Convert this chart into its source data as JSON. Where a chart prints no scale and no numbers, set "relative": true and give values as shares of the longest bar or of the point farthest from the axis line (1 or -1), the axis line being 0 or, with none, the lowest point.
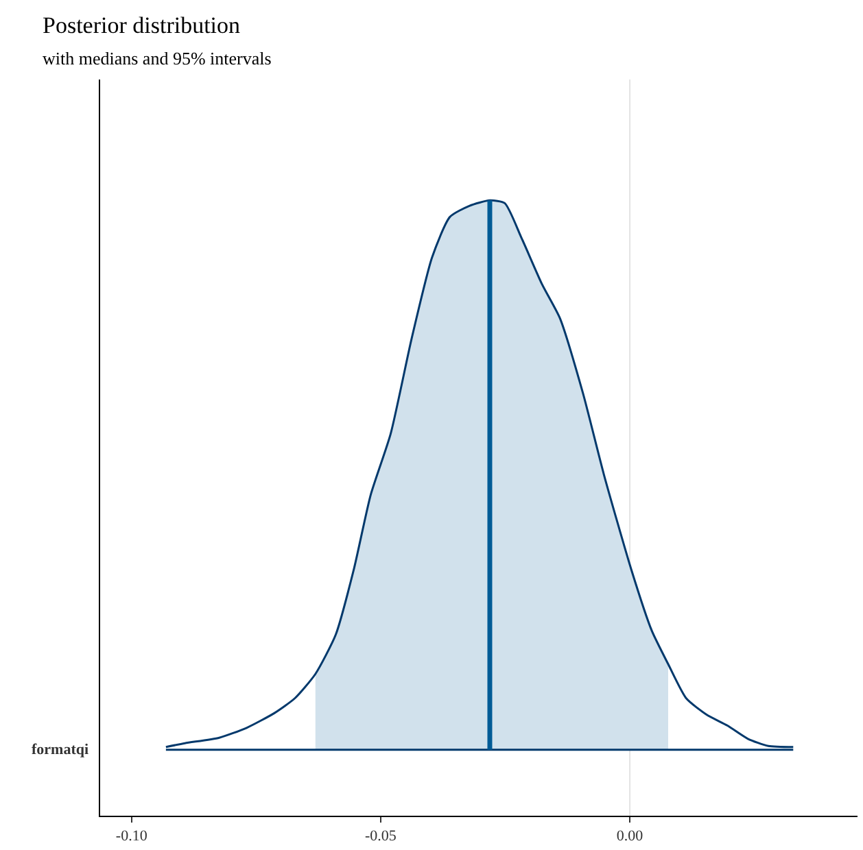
{
  "chart_data": {
    "type": "area",
    "title": "Posterior distribution",
    "subtitle": "with medians and 95% intervals",
    "relative": true,
    "xlim": [
      -0.1063,
      0.0457
    ],
    "xticks": [
      {
        "value": -0.1,
        "label": "-0.10"
      },
      {
        "value": -0.05,
        "label": "-0.05"
      },
      {
        "value": 0,
        "label": "0.00"
      }
    ],
    "series": [
      {
        "color": "#d1e1ec",
        "x": [
          -0.0631,
          -0.059,
          -0.0554,
          -0.052,
          -0.048,
          -0.0438,
          -0.0397,
          -0.0361,
          -0.0322,
          -0.0281,
          -0.0251,
          -0.0218,
          -0.0176,
          -0.014,
          -0.0094,
          -0.0052,
          0.0003,
          0.0044,
          0.0077
        ],
        "values": [
          0.138,
          0.21,
          0.328,
          0.464,
          0.575,
          0.748,
          0.896,
          0.97,
          0.99,
          1,
          0.995,
          0.933,
          0.847,
          0.785,
          0.649,
          0.501,
          0.328,
          0.217,
          0.156
        ]
      },
      {
        "type": "line",
        "name": "formatqi",
        "color": "#03396c",
        "x": [
          -0.0931,
          -0.0893,
          -0.0824,
          -0.0769,
          -0.0713,
          -0.0672,
          -0.0631,
          -0.059,
          -0.0554,
          -0.052,
          -0.048,
          -0.0438,
          -0.0397,
          -0.0361,
          -0.0322,
          -0.0281,
          -0.0251,
          -0.0218,
          -0.0176,
          -0.014,
          -0.0094,
          -0.0052,
          0.0003,
          0.0044,
          0.0077,
          0.0113,
          0.0154,
          0.0196,
          0.0237,
          0.0278,
          0.0328
        ],
        "values": [
          0.005,
          0.012,
          0.022,
          0.04,
          0.067,
          0.094,
          0.138,
          0.21,
          0.328,
          0.464,
          0.575,
          0.748,
          0.896,
          0.97,
          0.99,
          1,
          0.995,
          0.933,
          0.847,
          0.785,
          0.649,
          0.501,
          0.328,
          0.217,
          0.156,
          0.094,
          0.064,
          0.044,
          0.02,
          0.007,
          0.005
        ]
      }
    ],
    "ref_lines": [
      {
        "axis": "x",
        "value": 0,
        "color": "#e3e3e3"
      },
      {
        "axis": "x",
        "value": -0.0281,
        "color": "#005b96"
      }
    ],
    "grid": false
  }
}
